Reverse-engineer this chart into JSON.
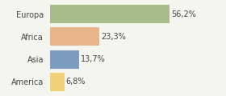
{
  "categories": [
    "Europa",
    "Africa",
    "Asia",
    "America"
  ],
  "values": [
    56.2,
    23.3,
    13.7,
    6.8
  ],
  "labels": [
    "56,2%",
    "23,3%",
    "13,7%",
    "6,8%"
  ],
  "colors": [
    "#a8bb8a",
    "#e8b48a",
    "#7b9bbf",
    "#f0d078"
  ],
  "xlim": [
    0,
    70
  ],
  "background_color": "#f5f5ef",
  "bar_height": 0.82,
  "label_fontsize": 7.0,
  "tick_fontsize": 7.0
}
